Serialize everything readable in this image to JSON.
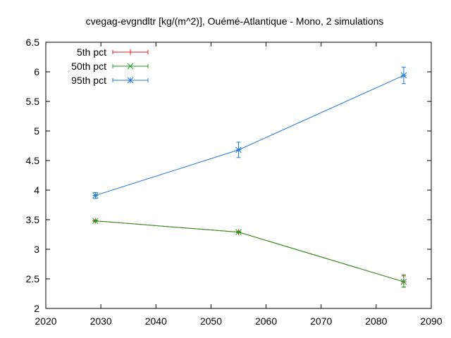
{
  "chart_data": {
    "type": "line",
    "title": "cvegag-evgndltr [kg/(m^2)], Ouémé-Atlantique - Mono, 2 simulations",
    "xlabel": "",
    "ylabel": "",
    "xlim": [
      2020,
      2090
    ],
    "ylim": [
      2,
      6.5
    ],
    "x_ticks": [
      2020,
      2030,
      2040,
      2050,
      2060,
      2070,
      2080,
      2090
    ],
    "y_ticks": [
      "2",
      "2.5",
      "3",
      "3.5",
      "4",
      "4.5",
      "5",
      "5.5",
      "6",
      "6.5"
    ],
    "grid": false,
    "legend_position": "top-left",
    "x": [
      2029,
      2055,
      2085
    ],
    "series": [
      {
        "name": "5th pct",
        "color": "#e41a1c",
        "marker": "plus",
        "values": [
          3.48,
          3.29,
          2.45
        ],
        "err_low": [
          3.47,
          3.28,
          2.36
        ],
        "err_high": [
          3.49,
          3.3,
          2.55
        ]
      },
      {
        "name": "50th pct",
        "color": "#1a9d1a",
        "marker": "x",
        "values": [
          3.48,
          3.29,
          2.45
        ],
        "err_low": [
          3.47,
          3.28,
          2.36
        ],
        "err_high": [
          3.49,
          3.3,
          2.57
        ]
      },
      {
        "name": "95th pct",
        "color": "#1f78d4",
        "marker": "star",
        "values": [
          3.91,
          4.68,
          5.94
        ],
        "err_low": [
          3.86,
          4.55,
          5.8
        ],
        "err_high": [
          3.96,
          4.81,
          6.08
        ]
      }
    ]
  }
}
